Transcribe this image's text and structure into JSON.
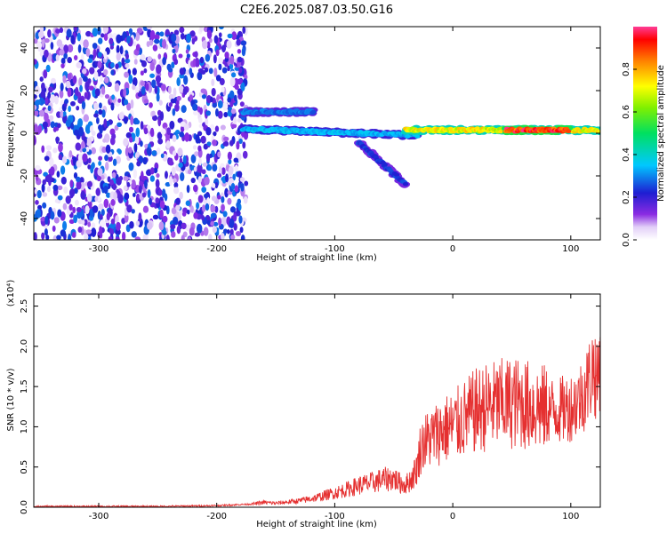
{
  "title": "C2E6.2025.087.03.50.G16",
  "colors": {
    "line": "#e53030",
    "axis": "#000000",
    "background": "#ffffff"
  },
  "chart_data": [
    {
      "type": "heatmap",
      "xlabel": "Height of straight line (km)",
      "ylabel": "Frequency (Hz)",
      "xlim": [
        -355,
        125
      ],
      "ylim": [
        -50,
        50
      ],
      "xticks": [
        -300,
        -200,
        -100,
        0,
        100
      ],
      "xtick_labels": [
        "-300",
        "-200",
        "-100",
        "0",
        "100"
      ],
      "yticks": [
        -40,
        -20,
        0,
        20,
        40
      ],
      "ytick_labels": [
        "-40",
        "-20",
        "0",
        "20",
        "40"
      ],
      "colorbar": {
        "label": "Normalized spectral amplitude",
        "range": [
          0,
          1
        ],
        "ticks": [
          0.0,
          0.2,
          0.4,
          0.6,
          0.8
        ],
        "tick_labels": [
          "0.0",
          "0.2",
          "0.4",
          "0.6",
          "0.8"
        ],
        "colormap": "rainbow (white → purple → blue → cyan → green → yellow → red)"
      },
      "features": [
        {
          "name": "noise region",
          "x_range": [
            -355,
            -175
          ],
          "y_range": [
            -50,
            50
          ],
          "amplitude": 0.2
        },
        {
          "name": "upper band",
          "x_range": [
            -178,
            -118
          ],
          "y": 10,
          "amplitude": 0.3
        },
        {
          "name": "lower band",
          "x_range": [
            -178,
            -30
          ],
          "y_start": 2,
          "y_end": -1,
          "amplitude": 0.35
        },
        {
          "name": "descending branch",
          "x_range": [
            -80,
            -40
          ],
          "y_start": -4,
          "y_end": -24,
          "amplitude": 0.25
        },
        {
          "name": "main band",
          "x_range": [
            -40,
            125
          ],
          "y": 1.5,
          "amplitude": 0.75
        },
        {
          "name": "peak band",
          "x_range": [
            45,
            98
          ],
          "y": 1.5,
          "amplitude": 0.95
        }
      ]
    },
    {
      "type": "line",
      "xlabel": "Height of straight line (km)",
      "ylabel": "SNR (10 * v/v)",
      "y_multiplier": "(x10⁴)",
      "xlim": [
        -355,
        125
      ],
      "ylim": [
        0,
        2.65
      ],
      "xticks": [
        -300,
        -200,
        -100,
        0,
        100
      ],
      "xtick_labels": [
        "-300",
        "-200",
        "-100",
        "0",
        "100"
      ],
      "yticks": [
        0.0,
        0.5,
        1.0,
        1.5,
        2.0,
        2.5
      ],
      "ytick_labels": [
        "0.0",
        "0.5",
        "1.0",
        "1.5",
        "2.0",
        "2.5"
      ],
      "series": [
        {
          "color": "#e53030",
          "x": [
            -355,
            -300,
            -250,
            -200,
            -170,
            -160,
            -150,
            -130,
            -115,
            -100,
            -90,
            -80,
            -70,
            -60,
            -50,
            -45,
            -40,
            -35,
            -30,
            -28,
            -25,
            -20,
            -15,
            -10,
            -5,
            0,
            10,
            20,
            30,
            40,
            50,
            60,
            70,
            80,
            90,
            100,
            105,
            110,
            115,
            118,
            120,
            122,
            125
          ],
          "y": [
            0.01,
            0.01,
            0.01,
            0.02,
            0.04,
            0.06,
            0.05,
            0.08,
            0.12,
            0.18,
            0.22,
            0.27,
            0.3,
            0.34,
            0.36,
            0.3,
            0.28,
            0.35,
            0.5,
            0.7,
            0.8,
            0.85,
            0.9,
            0.95,
            0.98,
            1.0,
            1.1,
            1.2,
            1.25,
            1.28,
            1.3,
            1.28,
            1.25,
            1.22,
            1.2,
            1.25,
            1.3,
            1.4,
            1.55,
            1.7,
            1.75,
            1.5,
            1.9
          ]
        }
      ]
    }
  ]
}
